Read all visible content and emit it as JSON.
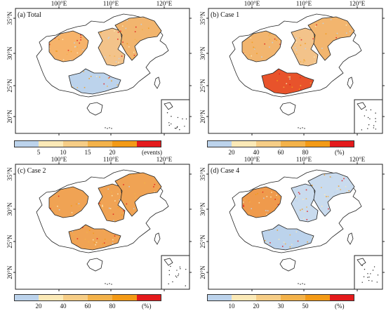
{
  "panels": [
    {
      "title": "(a) Total",
      "lon_ticks": [
        "100°E",
        "110°E",
        "120°E"
      ],
      "lat_ticks": [
        "35°N",
        "30°N",
        "25°N",
        "20°N"
      ],
      "dominant": "mixed-orange",
      "region_colors": [
        "#f6b36a",
        "#f3c38a",
        "#f2b56e",
        "#bcd3ec"
      ]
    },
    {
      "title": "(b) Case 1",
      "lon_ticks": [
        "100°E",
        "110°E",
        "120°E"
      ],
      "lat_ticks": [
        "35°N",
        "30°N",
        "25°N",
        "20°N"
      ],
      "dominant": "orange-red",
      "region_colors": [
        "#f2b56e",
        "#f3c38a",
        "#f2b56e",
        "#e8532b"
      ]
    },
    {
      "title": "(c) Case 2",
      "lon_ticks": [
        "100°E",
        "110°E",
        "120°E"
      ],
      "lat_ticks": [
        "35°N",
        "30°N",
        "25°N",
        "20°N"
      ],
      "dominant": "orange",
      "region_colors": [
        "#f0a354",
        "#f0a354",
        "#f0a354",
        "#f0a354"
      ]
    },
    {
      "title": "(d) Case 4",
      "lon_ticks": [
        "100°E",
        "110°E",
        "120°E"
      ],
      "lat_ticks": [
        "35°N",
        "30°N",
        "25°N",
        "20°N"
      ],
      "dominant": "blue",
      "region_colors": [
        "#ef9a4c",
        "#c9dbee",
        "#c9dbee",
        "#bcd3ec"
      ]
    }
  ],
  "colorbars": [
    {
      "ticks": [
        "5",
        "10",
        "15",
        "20"
      ],
      "unit": "(events)",
      "colors": [
        "#bcd3ec",
        "#fbe9b7",
        "#f6cd86",
        "#f3b24a",
        "#f39a16",
        "#e41a1c"
      ]
    },
    {
      "ticks": [
        "20",
        "40",
        "60",
        "80"
      ],
      "unit": "(%)",
      "colors": [
        "#bcd3ec",
        "#fbe9b7",
        "#f6cd86",
        "#f3b24a",
        "#f39a16",
        "#e41a1c"
      ]
    },
    {
      "ticks": [
        "20",
        "40",
        "60",
        "80"
      ],
      "unit": "(%)",
      "colors": [
        "#bcd3ec",
        "#fbe9b7",
        "#f6cd86",
        "#f3b24a",
        "#f39a16",
        "#e41a1c"
      ]
    },
    {
      "ticks": [
        "10",
        "20",
        "30",
        "50"
      ],
      "unit": "(%)",
      "colors": [
        "#bcd3ec",
        "#fbe9b7",
        "#f6cd86",
        "#f3b24a",
        "#f39a16",
        "#e41a1c"
      ]
    }
  ]
}
